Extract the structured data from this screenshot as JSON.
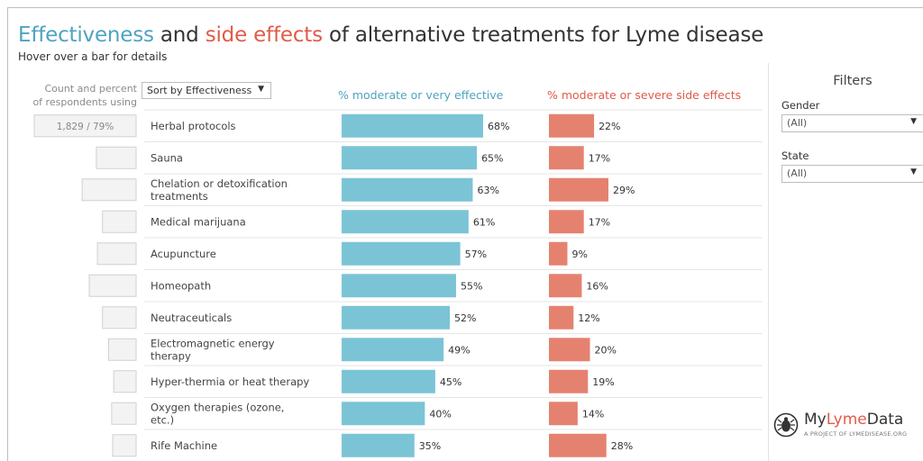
{
  "title": {
    "part1": "Effectiveness",
    "part2": " and ",
    "part3": "side effects",
    "part4": " of alternative treatments for Lyme disease"
  },
  "subtitle": "Hover over a bar for details",
  "count_header": {
    "line1": "Count and percent",
    "line2": "of respondents using"
  },
  "sort_select": {
    "value": "Sort by Effectiveness"
  },
  "filters": {
    "title": "Filters",
    "gender": {
      "label": "Gender",
      "value": "(All)"
    },
    "state": {
      "label": "State",
      "value": "(All)"
    }
  },
  "logo": {
    "name_my": "My",
    "name_lyme": "Lyme",
    "name_data": "Data",
    "subtitle": "A PROJECT OF LYMEDISEASE.ORG"
  },
  "colors": {
    "effective": "#7bc4d6",
    "side_effects": "#e5826f",
    "eff_header": "#4ea3c1",
    "side_header": "#e05b48"
  },
  "chart_data": {
    "type": "bar",
    "categories": [
      "Herbal protocols",
      "Sauna",
      "Chelation or detoxification treatments",
      "Medical marijuana",
      "Acupuncture",
      "Homeopath",
      "Neutraceuticals",
      "Electromagnetic energy therapy",
      "Hyper-thermia or heat therapy",
      "Oxygen therapies (ozone, etc.)",
      "Rife Machine"
    ],
    "series": [
      {
        "name": "% moderate or very effective",
        "values": [
          68,
          65,
          63,
          61,
          57,
          55,
          52,
          49,
          45,
          40,
          35
        ]
      },
      {
        "name": "% moderate or severe side effects",
        "values": [
          22,
          17,
          29,
          17,
          9,
          16,
          12,
          20,
          19,
          14,
          28
        ]
      }
    ],
    "count_labels": [
      "1,829 / 79%",
      "",
      "",
      "",
      "",
      "",
      "",
      "",
      "",
      "",
      ""
    ],
    "count_share": [
      1.0,
      0.39,
      0.53,
      0.33,
      0.38,
      0.46,
      0.33,
      0.27,
      0.22,
      0.24,
      0.23
    ],
    "value_suffix": "%",
    "sort": "descending by effectiveness"
  }
}
